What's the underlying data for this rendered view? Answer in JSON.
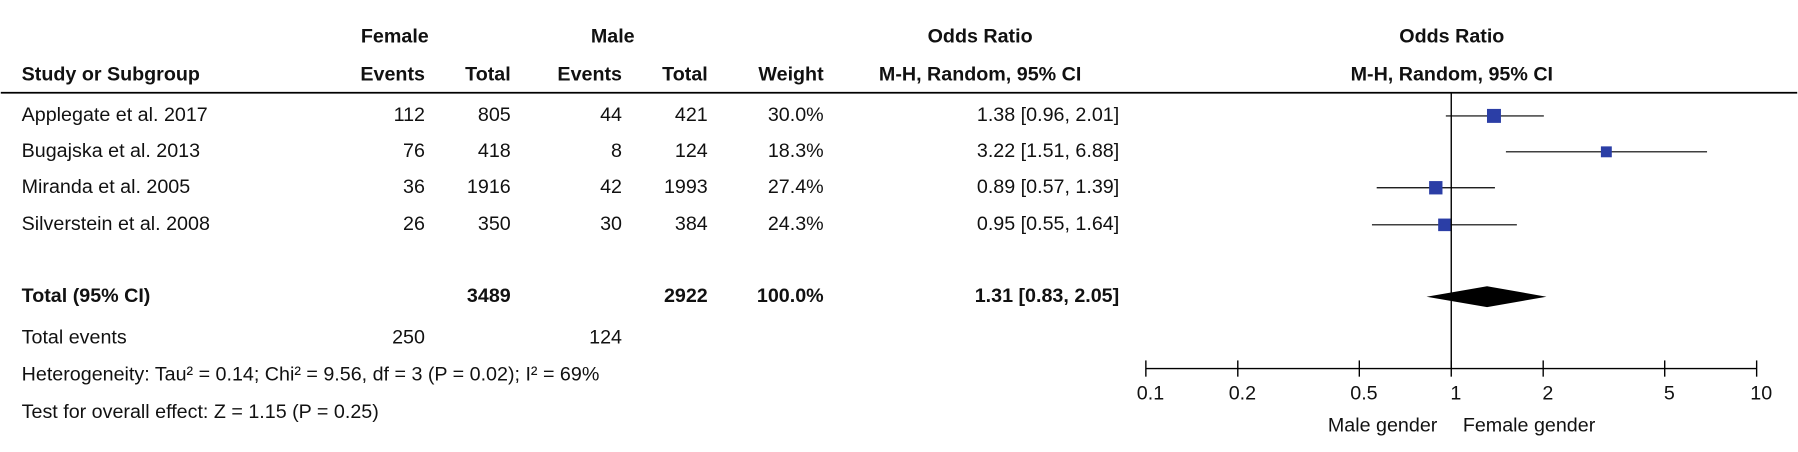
{
  "chart_data": {
    "type": "forest",
    "group_headers": [
      "Female",
      "Male"
    ],
    "or_header": "Odds Ratio",
    "method": "M-H, Random, 95% CI",
    "columns": {
      "study": "Study or Subgroup",
      "events": "Events",
      "total": "Total",
      "weight": "Weight"
    },
    "studies": [
      {
        "name": "Applegate et al. 2017",
        "female_events": 112,
        "female_total": 805,
        "male_events": 44,
        "male_total": 421,
        "weight": 30.0,
        "weight_label": "30.0%",
        "or": 1.38,
        "ci": [
          0.96,
          2.01
        ],
        "or_label": "1.38 [0.96, 2.01]"
      },
      {
        "name": "Bugajska et al. 2013",
        "female_events": 76,
        "female_total": 418,
        "male_events": 8,
        "male_total": 124,
        "weight": 18.3,
        "weight_label": "18.3%",
        "or": 3.22,
        "ci": [
          1.51,
          6.88
        ],
        "or_label": "3.22 [1.51, 6.88]"
      },
      {
        "name": "Miranda et al. 2005",
        "female_events": 36,
        "female_total": 1916,
        "male_events": 42,
        "male_total": 1993,
        "weight": 27.4,
        "weight_label": "27.4%",
        "or": 0.89,
        "ci": [
          0.57,
          1.39
        ],
        "or_label": "0.89 [0.57, 1.39]"
      },
      {
        "name": "Silverstein et al. 2008",
        "female_events": 26,
        "female_total": 350,
        "male_events": 30,
        "male_total": 384,
        "weight": 24.3,
        "weight_label": "24.3%",
        "or": 0.95,
        "ci": [
          0.55,
          1.64
        ],
        "or_label": "0.95 [0.55, 1.64]"
      }
    ],
    "total": {
      "name": "Total (95% CI)",
      "female_total": 3489,
      "male_total": 2922,
      "weight": 100.0,
      "weight_label": "100.0%",
      "or": 1.31,
      "ci": [
        0.83,
        2.05
      ],
      "or_label": "1.31 [0.83, 2.05]"
    },
    "total_events": {
      "name": "Total events",
      "female": 250,
      "male": 124
    },
    "heterogeneity": "Heterogeneity: Tau² = 0.14; Chi² = 9.56, df = 3 (P = 0.02); I² = 69%",
    "overall_effect": "Test for overall effect: Z = 1.15 (P = 0.25)",
    "xlim": [
      0.1,
      10
    ],
    "xticks": [
      0.1,
      0.2,
      0.5,
      1,
      2,
      5,
      10
    ],
    "log": true,
    "x_labels": [
      "Male gender",
      "Female gender"
    ],
    "color": "#2b3ea6",
    "diamond_color": "#000000"
  }
}
